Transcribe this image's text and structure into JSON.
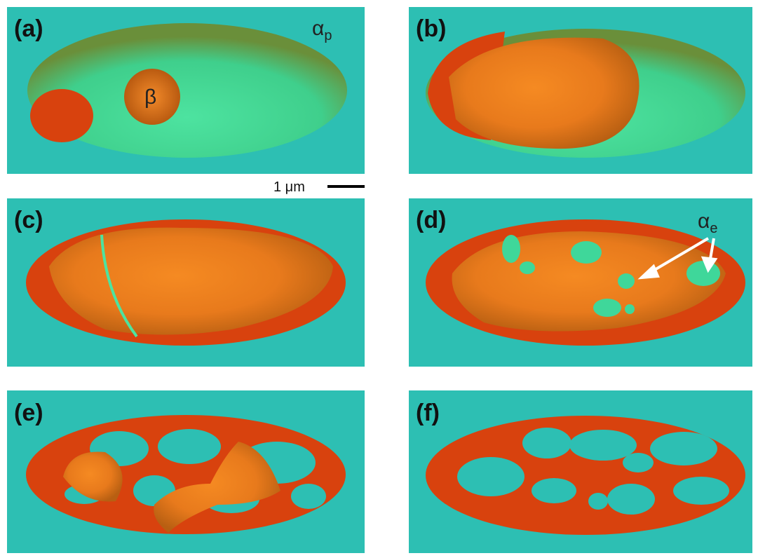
{
  "panels": [
    {
      "label": "(a)"
    },
    {
      "label": "(b)"
    },
    {
      "label": "(c)"
    },
    {
      "label": "(d)"
    },
    {
      "label": "(e)"
    },
    {
      "label": "(f)"
    }
  ],
  "annotations": {
    "alpha_p": {
      "symbol": "α",
      "subscript": "p"
    },
    "beta": "β",
    "alpha_e": {
      "symbol": "α",
      "subscript": "e"
    },
    "scale_bar": "1 μm"
  }
}
